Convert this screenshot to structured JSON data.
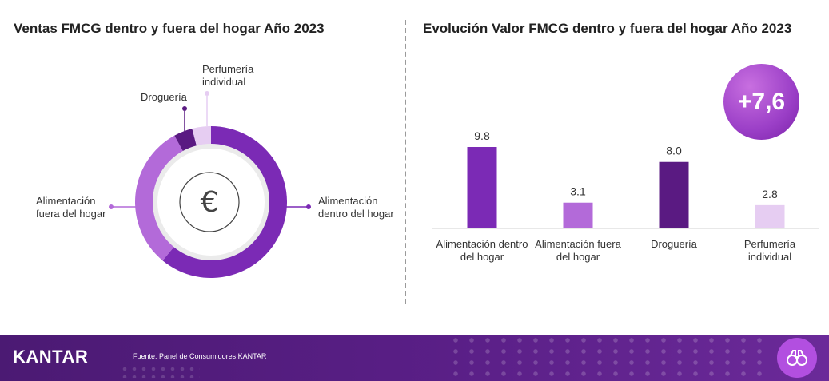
{
  "left_chart": {
    "title": "Ventas FMCG dentro y fuera del hogar Año 2023",
    "center_icon": "euro-icon",
    "labels": {
      "drogueria": "Droguería",
      "perfumeria": "Perfumería individual",
      "fuera": "Alimentación fuera del hogar",
      "dentro": "Alimentación dentro del hogar"
    }
  },
  "right_chart": {
    "title": "Evolución Valor FMCG dentro y fuera del hogar Año 2023",
    "badge": "+7,6"
  },
  "chart_data": [
    {
      "type": "pie",
      "variant": "donut",
      "title": "Ventas FMCG dentro y fuera del hogar Año 2023",
      "categories": [
        "Alimentación dentro del hogar",
        "Alimentación fuera del hogar",
        "Droguería",
        "Perfumería individual"
      ],
      "values": [
        61,
        31,
        4,
        4
      ],
      "colors": [
        "#7b2ab5",
        "#b36ad9",
        "#5a1a82",
        "#e6cdf2"
      ]
    },
    {
      "type": "bar",
      "title": "Evolución Valor FMCG dentro y fuera del hogar Año 2023",
      "categories": [
        "Alimentación dentro del hogar",
        "Alimentación fuera del hogar",
        "Droguería",
        "Perfumería individual"
      ],
      "values": [
        9.8,
        3.1,
        8.0,
        2.8
      ],
      "value_labels": [
        "9.8",
        "3.1",
        "8.0",
        "2.8"
      ],
      "colors": [
        "#7b2ab5",
        "#b36ad9",
        "#5a1a82",
        "#e6cdf2"
      ],
      "grid": false
    }
  ],
  "footer": {
    "logo": "KANTAR",
    "source": "Fuente: Panel de Consumidores KANTAR",
    "icon": "binoculars-icon"
  }
}
